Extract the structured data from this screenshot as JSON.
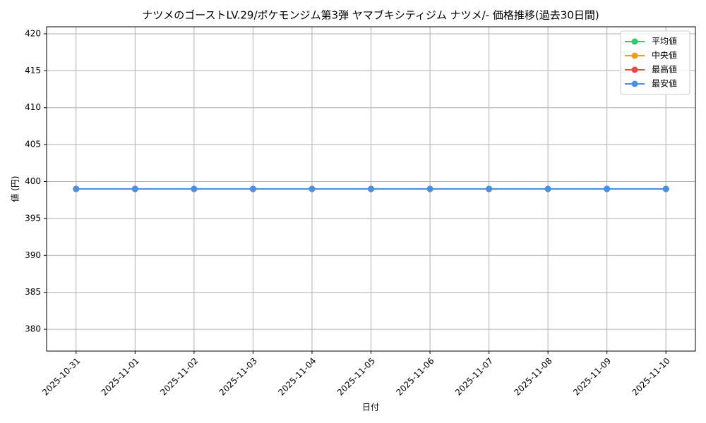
{
  "chart_data": {
    "type": "line",
    "title": "ナツメのゴーストLV.29/ポケモンジム第3弾 ヤマブキシティジム ナツメ/- 価格推移(過去30日間)",
    "x_label": "日付",
    "y_label": "値 (円)",
    "categories": [
      "2025-10-31",
      "2025-11-01",
      "2025-11-02",
      "2025-11-03",
      "2025-11-04",
      "2025-11-05",
      "2025-11-06",
      "2025-11-07",
      "2025-11-08",
      "2025-11-09",
      "2025-11-10"
    ],
    "series": [
      {
        "name": "平均値",
        "color": "#2ecc71",
        "values": [
          399,
          399,
          399,
          399,
          399,
          399,
          399,
          399,
          399,
          399,
          399
        ]
      },
      {
        "name": "中央値",
        "color": "#f39c12",
        "values": [
          399,
          399,
          399,
          399,
          399,
          399,
          399,
          399,
          399,
          399,
          399
        ]
      },
      {
        "name": "最高値",
        "color": "#e74c3c",
        "values": [
          399,
          399,
          399,
          399,
          399,
          399,
          399,
          399,
          399,
          399,
          399
        ]
      },
      {
        "name": "最安値",
        "color": "#4a90e2",
        "values": [
          399,
          399,
          399,
          399,
          399,
          399,
          399,
          399,
          399,
          399,
          399
        ]
      }
    ],
    "ylim": [
      377.05,
      420.95
    ],
    "yticks": [
      380,
      385,
      390,
      395,
      400,
      405,
      410,
      415,
      420
    ],
    "grid": true,
    "legend": "upper right"
  }
}
